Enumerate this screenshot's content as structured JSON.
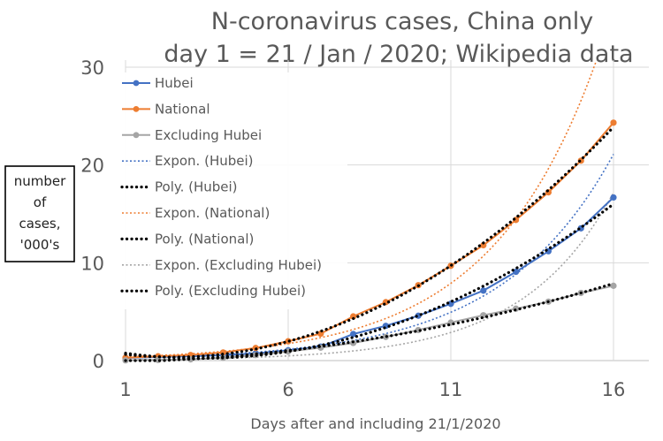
{
  "chart_data": {
    "type": "line",
    "title_line1": "N-coronavirus cases, China only",
    "title_line2": "day 1 = 21 / Jan / 2020; Wikipedia data",
    "xlabel": "Days after and including 21/1/2020",
    "ylabel_lines": [
      "number",
      "of",
      "cases,",
      "'000's"
    ],
    "xlim": [
      1,
      16
    ],
    "ylim": [
      0,
      30
    ],
    "xticks": [
      "1",
      "6",
      "11",
      "16"
    ],
    "yticks": [
      "0",
      "10",
      "20",
      "30"
    ],
    "grid": true,
    "legend_position": "top-left",
    "x": [
      1,
      2,
      3,
      4,
      5,
      6,
      7,
      8,
      9,
      10,
      11,
      12,
      13,
      14,
      15,
      16
    ],
    "series": [
      {
        "name": "Hubei",
        "color": "#4472c4",
        "values": [
          0.27,
          0.375,
          0.444,
          0.549,
          0.729,
          1.052,
          1.423,
          2.714,
          3.554,
          4.586,
          5.806,
          7.153,
          9.074,
          11.177,
          13.522,
          16.678
        ]
      },
      {
        "name": "National",
        "color": "#ed7d31",
        "values": [
          0.291,
          0.44,
          0.571,
          0.83,
          1.287,
          1.975,
          2.744,
          4.515,
          5.974,
          7.711,
          9.692,
          11.791,
          14.38,
          17.205,
          20.438,
          24.324
        ]
      },
      {
        "name": "Excluding Hubei",
        "color": "#a5a5a5",
        "values": [
          0.021,
          0.065,
          0.127,
          0.281,
          0.558,
          0.923,
          1.321,
          1.801,
          2.42,
          3.125,
          3.886,
          4.638,
          5.306,
          6.028,
          6.916,
          7.646
        ]
      }
    ],
    "trendlines": [
      {
        "name": "Expon. (Hubei)",
        "kind": "exponential",
        "of": "Hubei",
        "color": "#4472c4"
      },
      {
        "name": "Poly. (Hubei)",
        "kind": "polynomial",
        "of": "Hubei",
        "color": "#000000"
      },
      {
        "name": "Expon. (National)",
        "kind": "exponential",
        "of": "National",
        "color": "#ed7d31"
      },
      {
        "name": "Poly. (National)",
        "kind": "polynomial",
        "of": "National",
        "color": "#000000"
      },
      {
        "name": "Expon. (Excluding Hubei)",
        "kind": "exponential",
        "of": "Excluding Hubei",
        "color": "#a5a5a5"
      },
      {
        "name": "Poly. (Excluding Hubei)",
        "kind": "polynomial",
        "of": "Excluding Hubei",
        "color": "#000000"
      }
    ],
    "colors": {
      "grid": "#d9d9d9",
      "text": "#595959"
    }
  }
}
